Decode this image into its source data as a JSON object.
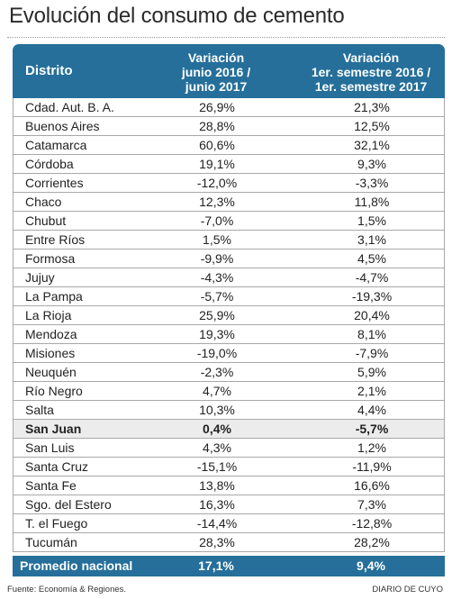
{
  "title": "Evolución del consumo de cemento",
  "header": {
    "district": "Distrito",
    "col1": [
      "Variación",
      "junio 2016 /",
      "junio 2017"
    ],
    "col2": [
      "Variación",
      "1er. semestre 2016 /",
      "1er. semestre 2017"
    ]
  },
  "chart_data": {
    "type": "table",
    "title": "Evolución del consumo de cemento",
    "columns": [
      "Distrito",
      "Variación junio 2016 / junio 2017",
      "Variación 1er. semestre 2016 / 1er. semestre 2017"
    ],
    "rows": [
      {
        "district": "Cdad. Aut. B. A.",
        "junio": "26,9%",
        "semestre": "21,3%"
      },
      {
        "district": "Buenos Aires",
        "junio": "28,8%",
        "semestre": "12,5%"
      },
      {
        "district": "Catamarca",
        "junio": "60,6%",
        "semestre": "32,1%"
      },
      {
        "district": "Córdoba",
        "junio": "19,1%",
        "semestre": "9,3%"
      },
      {
        "district": "Corrientes",
        "junio": "-12,0%",
        "semestre": "-3,3%"
      },
      {
        "district": "Chaco",
        "junio": "12,3%",
        "semestre": "11,8%"
      },
      {
        "district": "Chubut",
        "junio": "-7,0%",
        "semestre": "1,5%"
      },
      {
        "district": "Entre Ríos",
        "junio": "1,5%",
        "semestre": "3,1%"
      },
      {
        "district": "Formosa",
        "junio": "-9,9%",
        "semestre": "4,5%"
      },
      {
        "district": "Jujuy",
        "junio": "-4,3%",
        "semestre": "-4,7%"
      },
      {
        "district": "La Pampa",
        "junio": "-5,7%",
        "semestre": "-19,3%"
      },
      {
        "district": "La Rioja",
        "junio": "25,9%",
        "semestre": "20,4%"
      },
      {
        "district": "Mendoza",
        "junio": "19,3%",
        "semestre": "8,1%"
      },
      {
        "district": "Misiones",
        "junio": "-19,0%",
        "semestre": "-7,9%"
      },
      {
        "district": "Neuquén",
        "junio": "-2,3%",
        "semestre": "5,9%"
      },
      {
        "district": "Río Negro",
        "junio": "4,7%",
        "semestre": "2,1%"
      },
      {
        "district": "Salta",
        "junio": "10,3%",
        "semestre": "4,4%"
      },
      {
        "district": "San Juan",
        "junio": "0,4%",
        "semestre": "-5,7%",
        "highlight": true
      },
      {
        "district": "San Luis",
        "junio": "4,3%",
        "semestre": "1,2%"
      },
      {
        "district": "Santa Cruz",
        "junio": "-15,1%",
        "semestre": "-11,9%"
      },
      {
        "district": "Santa Fe",
        "junio": "13,8%",
        "semestre": "16,6%"
      },
      {
        "district": "Sgo. del Estero",
        "junio": "16,3%",
        "semestre": "7,3%"
      },
      {
        "district": "T. el Fuego",
        "junio": "-14,4%",
        "semestre": "-12,8%"
      },
      {
        "district": "Tucumán",
        "junio": "28,3%",
        "semestre": "28,2%"
      }
    ],
    "total": {
      "district": "Promedio nacional",
      "junio": "17,1%",
      "semestre": "9,4%"
    }
  },
  "footer": {
    "source": "Fuente: Economía & Regiones.",
    "brand": "DIARIO DE CUYO"
  },
  "colors": {
    "header_bg": "#256f9a",
    "highlight_bg": "#ececec"
  }
}
